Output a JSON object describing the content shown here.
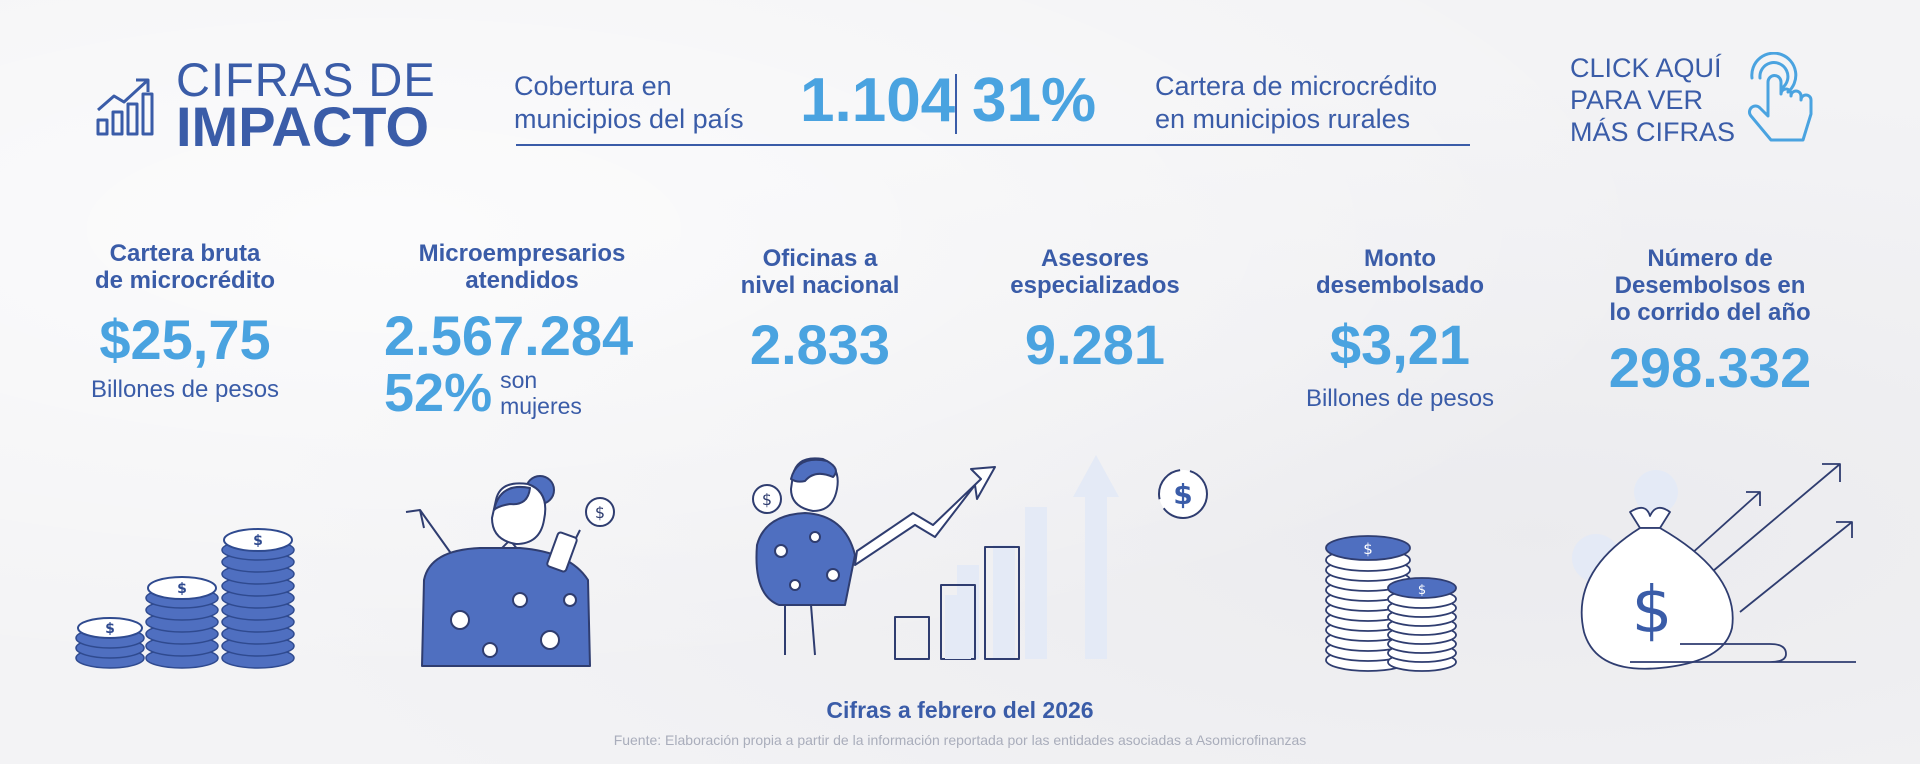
{
  "header": {
    "title_line1": "CIFRAS DE",
    "title_line2": "IMPACTO",
    "coverage_label_line1": "Cobertura en",
    "coverage_label_line2": "municipios del país",
    "coverage_value": "1.104",
    "rural_pct_value": "31%",
    "rural_label_line1": "Cartera de microcrédito",
    "rural_label_line2": "en municipios rurales",
    "cta_line1": "CLICK AQUÍ",
    "cta_line2": "PARA VER",
    "cta_line3": "MÁS CIFRAS"
  },
  "stats": {
    "cartera": {
      "title_line1": "Cartera bruta",
      "title_line2": "de microcrédito",
      "value": "$25,75",
      "unit": "Billones de pesos"
    },
    "microempresarios": {
      "title_line1": "Microempresarios",
      "title_line2": "atendidos",
      "value": "2.567.284",
      "women_pct": "52%",
      "women_text_line1": "son",
      "women_text_line2": "mujeres"
    },
    "oficinas": {
      "title_line1": "Oficinas a",
      "title_line2": "nivel nacional",
      "value": "2.833"
    },
    "asesores": {
      "title_line1": "Asesores",
      "title_line2": "especializados",
      "value": "9.281"
    },
    "monto": {
      "title_line1": "Monto",
      "title_line2": "desembolsado",
      "value": "$3,21",
      "unit": "Billones de pesos"
    },
    "desembolsos": {
      "title_line1": "Número de",
      "title_line2": "Desembolsos en",
      "title_line3": "lo corrido del año",
      "value": "298.332"
    }
  },
  "footer": {
    "title": "Cifras a febrero del 2026",
    "source": "Fuente: Elaboración propia a partir de la información reportada por las entidades asociadas a Asomicrofinanzas"
  },
  "colors": {
    "navy": "#3a5ca8",
    "accent_blue": "#4aa3e0",
    "muted": "#a9adbb",
    "pale": "#e4eaf6"
  },
  "icons": [
    "growth-chart-icon",
    "tap-hand-icon",
    "coin-stacks-icon",
    "woman-phone-icon",
    "man-growth-chart-icon",
    "dollar-circle-icon",
    "coin-stacks-pair-icon",
    "money-bag-arrows-icon"
  ]
}
